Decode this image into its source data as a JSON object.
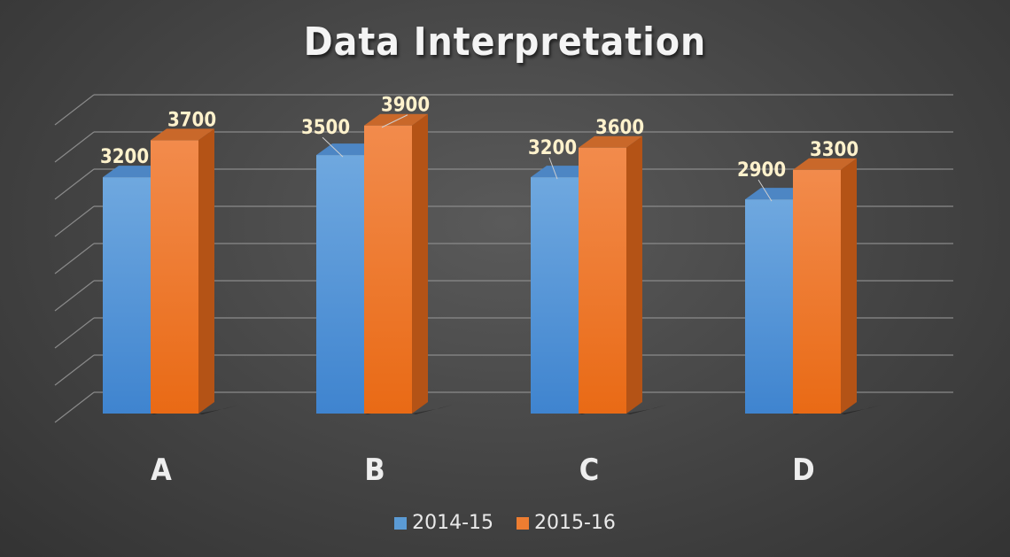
{
  "chart_data": {
    "type": "bar",
    "title": "Data Interpretation",
    "categories": [
      "A",
      "B",
      "C",
      "D"
    ],
    "series": [
      {
        "name": "2014-15",
        "values": [
          3200,
          3500,
          3200,
          2900
        ]
      },
      {
        "name": "2015-16",
        "values": [
          3700,
          3900,
          3600,
          3300
        ]
      }
    ],
    "ylim": [
      0,
      4300
    ],
    "grid": true,
    "legend": "bottom",
    "style": "3d clustered column",
    "colors": {
      "series_0": "#5b9bd5",
      "series_1": "#ed7d31",
      "label": "#fff2cc",
      "grid": "#8a8a8a"
    }
  }
}
